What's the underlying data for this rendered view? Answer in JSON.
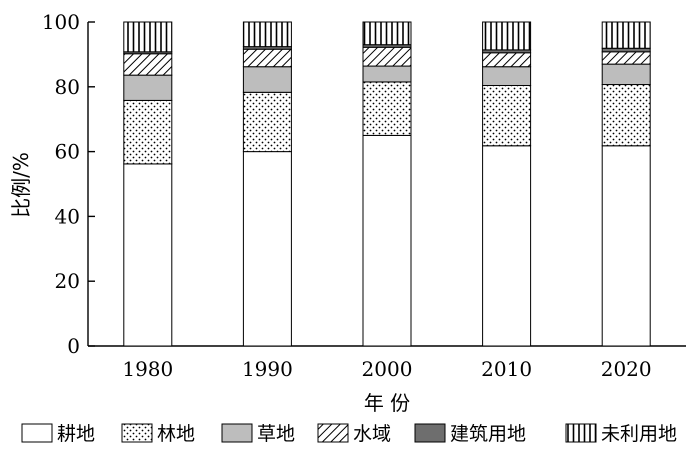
{
  "chart_data": {
    "type": "bar",
    "stacked": true,
    "categories": [
      "1980",
      "1990",
      "2000",
      "2010",
      "2020"
    ],
    "xlabel": "年 份",
    "ylabel": "比例/%",
    "ylim": [
      0,
      100
    ],
    "yticks": [
      0,
      20,
      40,
      60,
      80,
      100
    ],
    "grid": false,
    "legend_position": "bottom",
    "series": [
      {
        "name": "耕地",
        "pattern": "solid-white",
        "values": [
          56.2,
          60.0,
          65.0,
          61.8,
          61.8
        ]
      },
      {
        "name": "林地",
        "pattern": "dots",
        "values": [
          19.6,
          18.3,
          16.5,
          18.6,
          18.9
        ]
      },
      {
        "name": "草地",
        "pattern": "solid-lightgray",
        "values": [
          7.8,
          7.9,
          4.9,
          5.8,
          6.3
        ]
      },
      {
        "name": "水域",
        "pattern": "diagonal-hatch",
        "values": [
          6.6,
          5.4,
          5.8,
          4.3,
          3.8
        ]
      },
      {
        "name": "建筑用地",
        "pattern": "solid-darkgray",
        "values": [
          0.6,
          0.8,
          0.8,
          0.9,
          1.1
        ]
      },
      {
        "name": "未利用地",
        "pattern": "vertical-lines",
        "values": [
          9.2,
          7.6,
          7.0,
          8.6,
          8.1
        ]
      }
    ]
  }
}
